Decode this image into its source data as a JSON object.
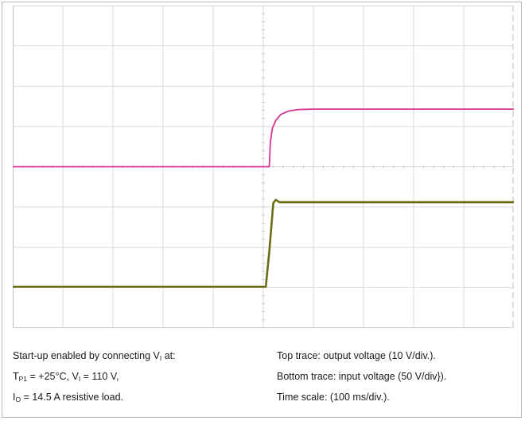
{
  "chart_data": {
    "type": "line",
    "title": "",
    "xlabel": "",
    "ylabel": "",
    "time_scale_ms_per_div": 100,
    "x_divisions": 10,
    "y_divisions": 8,
    "grid": true,
    "series": [
      {
        "name": "Top trace: output voltage",
        "color": "#d6338f",
        "volts_per_div": 10,
        "x_div": [
          0,
          5.12,
          5.14,
          5.18,
          5.25,
          5.35,
          5.5,
          5.7,
          6.0,
          10
        ],
        "y_div": [
          4,
          4,
          4.6,
          4.95,
          5.15,
          5.3,
          5.38,
          5.42,
          5.43,
          5.43
        ]
      },
      {
        "name": "Bottom trace: input voltage",
        "color": "#6b6b14",
        "volts_per_div": 50,
        "x_div": [
          0,
          5.05,
          5.12,
          5.2,
          5.25,
          5.32,
          5.4,
          10
        ],
        "y_div": [
          1.02,
          1.02,
          1.9,
          3.1,
          3.18,
          3.12,
          3.12,
          3.12
        ]
      }
    ]
  },
  "caption": {
    "left": [
      {
        "parts": [
          "Start-up enabled by connecting V",
          "I",
          " at:"
        ]
      },
      {
        "parts": [
          "T",
          "P1",
          " = +25°C, V",
          "I",
          " = 110 V,"
        ]
      },
      {
        "parts": [
          "I",
          "O",
          " = 14.5 A resistive load."
        ]
      }
    ],
    "right": [
      {
        "parts": [
          "Top trace: output voltage (10 V/div.)."
        ]
      },
      {
        "parts": [
          "Bottom trace: input voltage (50 V/div})."
        ]
      },
      {
        "parts": [
          "Time scale: (100 ms/div.)."
        ]
      }
    ]
  }
}
